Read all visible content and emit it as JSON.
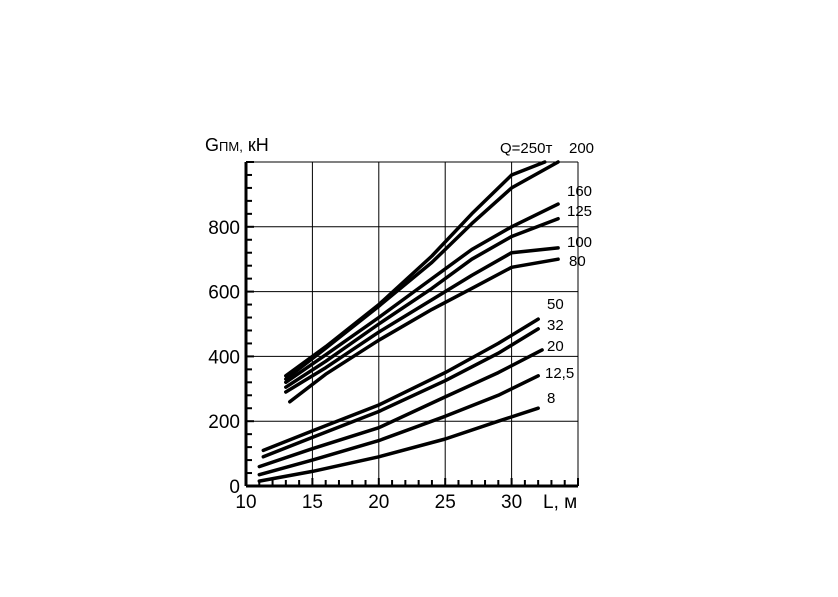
{
  "chart_data": {
    "type": "line",
    "xlabel": "L, м",
    "ylabel_main": "G",
    "ylabel_sub": "ПМ,",
    "ylabel_unit": "кН",
    "xlim": [
      10,
      35
    ],
    "ylim": [
      0,
      1000
    ],
    "x_ticks": [
      "10",
      "15",
      "20",
      "25",
      "30"
    ],
    "y_ticks": [
      {
        "label": "0",
        "value": 0
      },
      {
        "label": "200",
        "value": 200
      },
      {
        "label": "400",
        "value": 400
      },
      {
        "label": "600",
        "value": 600
      },
      {
        "label": "800",
        "value": 800
      }
    ],
    "grid": true,
    "series": [
      {
        "name": "Q=250т",
        "x": [
          13,
          16,
          20,
          24,
          27,
          30,
          32.5
        ],
        "y": [
          340,
          430,
          560,
          710,
          840,
          960,
          1000
        ]
      },
      {
        "name": "200",
        "x": [
          13,
          16,
          20,
          24,
          27,
          30,
          33.5
        ],
        "y": [
          330,
          425,
          555,
          690,
          810,
          920,
          1000
        ]
      },
      {
        "name": "160",
        "x": [
          13,
          16,
          20,
          24,
          27,
          30,
          33.5
        ],
        "y": [
          320,
          405,
          520,
          640,
          730,
          800,
          870
        ]
      },
      {
        "name": "125",
        "x": [
          13,
          16,
          20,
          24,
          27,
          30,
          33.5
        ],
        "y": [
          305,
          385,
          500,
          610,
          700,
          770,
          825
        ]
      },
      {
        "name": "100",
        "x": [
          13,
          16,
          20,
          24,
          27,
          30,
          33.5
        ],
        "y": [
          290,
          365,
          475,
          575,
          650,
          720,
          735
        ]
      },
      {
        "name": "80",
        "x": [
          13.3,
          16,
          20,
          24,
          27,
          30,
          33.5
        ],
        "y": [
          260,
          345,
          450,
          545,
          610,
          675,
          700
        ]
      },
      {
        "name": "50",
        "x": [
          11.3,
          15,
          20,
          25,
          29,
          32
        ],
        "y": [
          110,
          170,
          250,
          350,
          440,
          515
        ]
      },
      {
        "name": "32",
        "x": [
          11.3,
          15,
          20,
          25,
          29,
          32
        ],
        "y": [
          90,
          150,
          230,
          325,
          410,
          485
        ]
      },
      {
        "name": "20",
        "x": [
          11,
          15,
          20,
          25,
          29,
          32.3
        ],
        "y": [
          60,
          115,
          180,
          275,
          350,
          420
        ]
      },
      {
        "name": "12,5",
        "x": [
          11,
          15,
          20,
          25,
          29,
          32
        ],
        "y": [
          35,
          80,
          140,
          215,
          280,
          340
        ]
      },
      {
        "name": "8",
        "x": [
          11,
          15,
          20,
          25,
          29,
          32
        ],
        "y": [
          15,
          45,
          90,
          145,
          200,
          240
        ]
      }
    ]
  }
}
